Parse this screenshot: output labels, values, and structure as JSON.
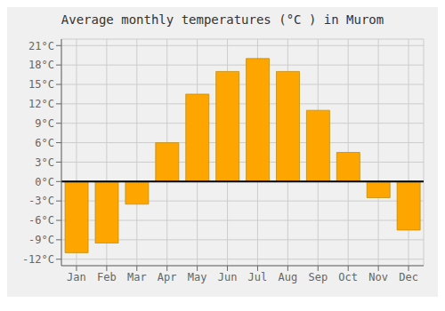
{
  "chart_data": {
    "type": "bar",
    "title": "Average monthly temperatures (°C ) in Murom",
    "categories": [
      "Jan",
      "Feb",
      "Mar",
      "Apr",
      "May",
      "Jun",
      "Jul",
      "Aug",
      "Sep",
      "Oct",
      "Nov",
      "Dec"
    ],
    "values": [
      -11,
      -9.5,
      -3.5,
      6,
      13.5,
      17,
      19,
      17,
      11,
      4.5,
      -2.5,
      -7.5
    ],
    "color": "#FFA500",
    "ylim": [
      -13,
      22
    ],
    "yticks": [
      {
        "value": -12,
        "label": "-12°C"
      },
      {
        "value": -9,
        "label": "-9°C"
      },
      {
        "value": -6,
        "label": "-6°C"
      },
      {
        "value": -3,
        "label": "-3°C"
      },
      {
        "value": 0,
        "label": "0°C"
      },
      {
        "value": 3,
        "label": "3°C"
      },
      {
        "value": 6,
        "label": "6°C"
      },
      {
        "value": 9,
        "label": "9°C"
      },
      {
        "value": 12,
        "label": "12°C"
      },
      {
        "value": 15,
        "label": "15°C"
      },
      {
        "value": 18,
        "label": "18°C"
      },
      {
        "value": 21,
        "label": "21°C"
      }
    ],
    "grid": true
  }
}
